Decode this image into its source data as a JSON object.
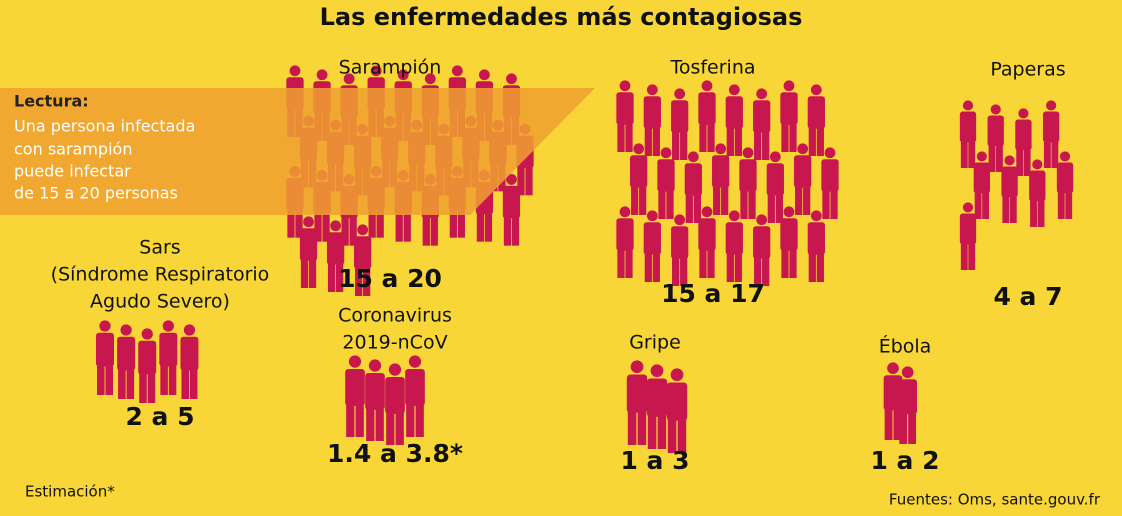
{
  "title": "Las enfermedades más contagiosas",
  "note": {
    "heading": "Lectura:",
    "lines": [
      "Una persona infectada",
      "con sarampión",
      "puede infectar",
      "de 15 a 20 personas"
    ]
  },
  "diseases": [
    {
      "name_lines": [
        "Sarampión"
      ],
      "range": "15 a 20"
    },
    {
      "name_lines": [
        "Tosferina"
      ],
      "range": "15 a 17"
    },
    {
      "name_lines": [
        "Paperas"
      ],
      "range": "4 a 7"
    },
    {
      "name_lines": [
        "Sars",
        "(Síndrome Respiratorio",
        "Agudo Severo)"
      ],
      "range": "2 a 5"
    },
    {
      "name_lines": [
        "Coronavirus",
        "2019-nCoV"
      ],
      "range": "1.4 a 3.8*"
    },
    {
      "name_lines": [
        "Gripe"
      ],
      "range": "1 a 3"
    },
    {
      "name_lines": [
        "Ébola"
      ],
      "range": "1 a 2"
    }
  ],
  "footnote": "Estimación*",
  "source": "Fuentes: Oms, sante.gouv.fr"
}
